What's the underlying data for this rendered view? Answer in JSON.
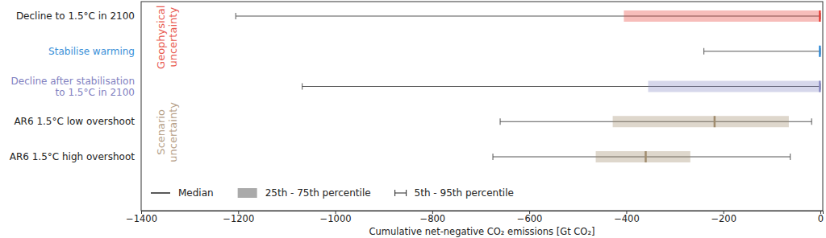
{
  "chart_data": {
    "type": "box",
    "orientation": "horizontal",
    "x_label": "Cumulative net-negative CO₂ emissions [Gt CO₂]",
    "categories": [
      "Decline to 1.5°C in 2100",
      "Stabilise warming",
      "Decline after stabilisation to 1.5°C in 2100",
      "AR6 1.5°C low overshoot",
      "AR6 1.5°C high overshoot"
    ],
    "colors": [
      "#e8413a",
      "#3a8fd8",
      "#8a8cc5",
      "#a08c6e",
      "#a08c6e"
    ],
    "stats": [
      {
        "p5": -1205,
        "q1": -405,
        "median": -1,
        "q3": 0,
        "p95": 0
      },
      {
        "p5": -240,
        "q1": -3,
        "median": -1,
        "q3": 0,
        "p95": 0
      },
      {
        "p5": -1068,
        "q1": -355,
        "median": -1,
        "q3": 0,
        "p95": 0
      },
      {
        "p5": -660,
        "q1": -428,
        "median": -218,
        "q3": -65,
        "p95": -18
      },
      {
        "p5": -675,
        "q1": -463,
        "median": -360,
        "q3": -268,
        "p95": -62
      }
    ],
    "annotations": [
      {
        "text": "Geophysical uncertainty",
        "color": "#e8584f"
      },
      {
        "text": "Scenario uncertainty",
        "color": "#b5a088"
      }
    ],
    "legend": "lower left",
    "legend_entries": {
      "median": "Median",
      "iqr": "25th - 75th percentile",
      "whiskers": "5th - 95th percentile"
    },
    "xlim": [
      -1400,
      5
    ],
    "xticks": [
      {
        "value": -1400,
        "label": "−1400"
      },
      {
        "value": -1200,
        "label": "−1200"
      },
      {
        "value": -1000,
        "label": "−1000"
      },
      {
        "value": -800,
        "label": "−800"
      },
      {
        "value": -600,
        "label": "−600"
      },
      {
        "value": -400,
        "label": "−400"
      },
      {
        "value": -200,
        "label": "−200"
      },
      0
    ],
    "grid": false
  }
}
